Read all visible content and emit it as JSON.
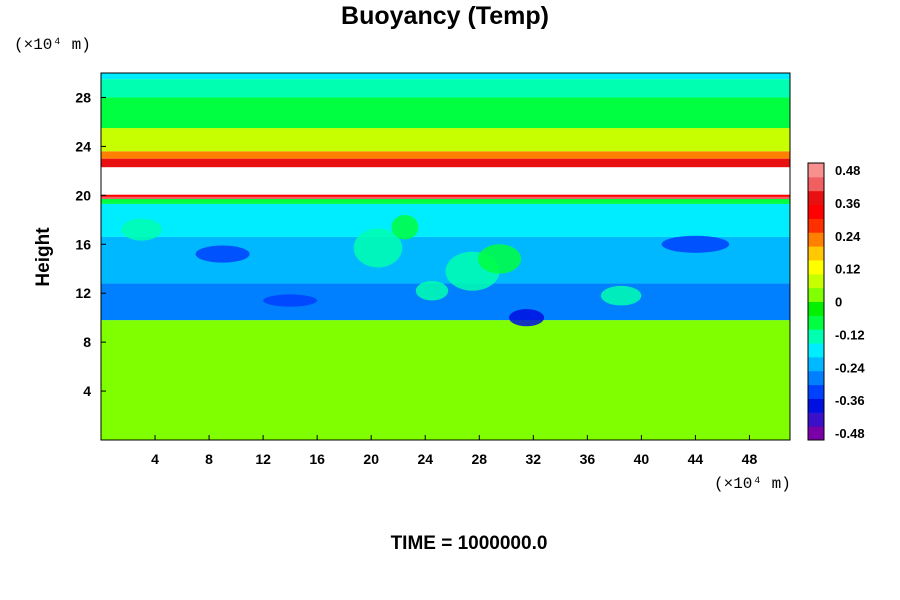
{
  "chart_data": {
    "type": "heatmap",
    "title": "Buoyancy (Temp)",
    "xlabel": "",
    "ylabel": "Height",
    "x_unit": "(×10⁴ m)",
    "y_unit": "(×10⁴ m)",
    "xlim": [
      0,
      51
    ],
    "ylim": [
      0,
      30
    ],
    "x_ticks": [
      "4",
      "8",
      "12",
      "16",
      "20",
      "24",
      "28",
      "32",
      "36",
      "40",
      "44",
      "48"
    ],
    "y_ticks": [
      "4",
      "8",
      "12",
      "16",
      "20",
      "24",
      "28"
    ],
    "x_tick_values": [
      4,
      8,
      12,
      16,
      20,
      24,
      28,
      32,
      36,
      40,
      44,
      48
    ],
    "y_tick_values": [
      4,
      8,
      12,
      16,
      20,
      24,
      28
    ],
    "colorbar": {
      "labels": [
        "0.48",
        "0.36",
        "0.24",
        "0.12",
        "0",
        "-0.12",
        "-0.24",
        "-0.36",
        "-0.48"
      ],
      "min": -0.48,
      "max": 0.48,
      "colors": [
        "#7a00a8",
        "#3a10c8",
        "#0010e0",
        "#0040ff",
        "#0080ff",
        "#00b8ff",
        "#00ecff",
        "#00ffb0",
        "#00ff40",
        "#00f000",
        "#80ff00",
        "#c8ff00",
        "#ffff00",
        "#ffc800",
        "#ff8000",
        "#ff3000",
        "#ff0000",
        "#e81010",
        "#f06060",
        "#f89090"
      ]
    },
    "layers": [
      {
        "y0": 0,
        "y1": 9.8,
        "value": 0.0,
        "description_hidden": true
      },
      {
        "y0": 9.8,
        "y1": 12.8,
        "value": -0.28
      },
      {
        "y0": 12.8,
        "y1": 16.6,
        "value": -0.24
      },
      {
        "y0": 16.6,
        "y1": 19.3,
        "value": -0.18
      },
      {
        "y0": 19.3,
        "y1": 19.7,
        "value": -0.08
      },
      {
        "y0": 19.7,
        "y1": 20.0,
        "value": 0.4
      },
      {
        "y0": 20.0,
        "y1": 22.3,
        "value": 0.6
      },
      {
        "y0": 22.3,
        "y1": 23.0,
        "value": 0.36
      },
      {
        "y0": 23.0,
        "y1": 23.6,
        "value": 0.2
      },
      {
        "y0": 23.6,
        "y1": 25.5,
        "value": 0.08
      },
      {
        "y0": 25.5,
        "y1": 28.0,
        "value": -0.06
      },
      {
        "y0": 28.0,
        "y1": 29.5,
        "value": -0.1
      },
      {
        "y0": 29.5,
        "y1": 30,
        "value": -0.16
      }
    ]
  },
  "footer": {
    "time_label": "TIME = 1000000.0"
  }
}
